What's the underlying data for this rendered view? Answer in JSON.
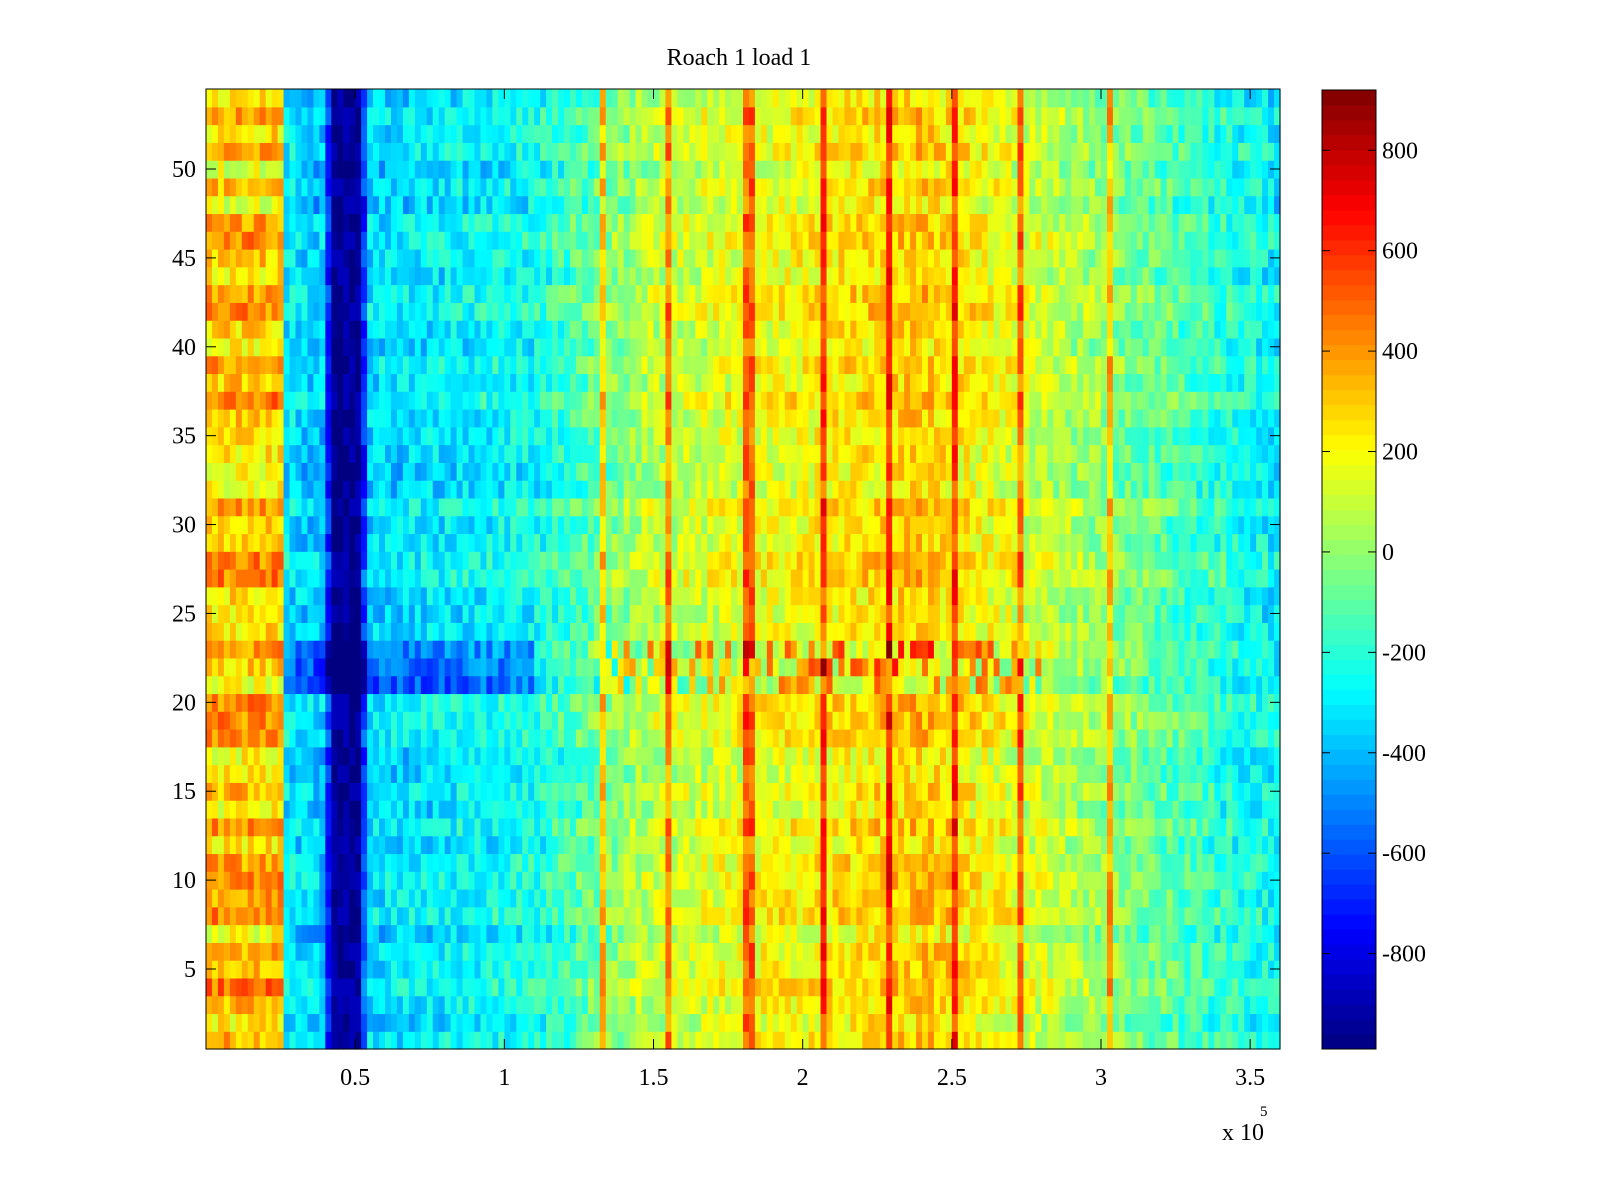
{
  "chart_data": {
    "type": "heatmap",
    "title": "Roach 1 load 1",
    "xlabel": "",
    "ylabel": "",
    "x_multiplier_label": {
      "base": "x 10",
      "exponent": "5"
    },
    "xlim": [
      0,
      3.6
    ],
    "ylim": [
      0.5,
      54.5
    ],
    "x_ticks": [
      0.5,
      1,
      1.5,
      2,
      2.5,
      3,
      3.5
    ],
    "x_tick_labels": [
      "0.5",
      "1",
      "1.5",
      "2",
      "2.5",
      "3",
      "3.5"
    ],
    "y_ticks": [
      5,
      10,
      15,
      20,
      25,
      30,
      35,
      40,
      45,
      50
    ],
    "y_tick_labels": [
      "5",
      "10",
      "15",
      "20",
      "25",
      "30",
      "35",
      "40",
      "45",
      "50"
    ],
    "n_rows": 54,
    "colormap": "jet",
    "colorbar": {
      "clim": [
        -990,
        920
      ],
      "ticks": [
        800,
        600,
        400,
        200,
        0,
        -200,
        -400,
        -600,
        -800
      ],
      "tick_labels": [
        "800",
        "600",
        "400",
        "200",
        "0",
        "-200",
        "-400",
        "-600",
        "-800"
      ]
    },
    "column_profile": [
      {
        "x": 0.0,
        "value": 300
      },
      {
        "x": 0.25,
        "value": 300
      },
      {
        "x": 0.26,
        "value": -300
      },
      {
        "x": 0.4,
        "value": -400
      },
      {
        "x": 0.42,
        "value": -950
      },
      {
        "x": 0.52,
        "value": -950
      },
      {
        "x": 0.54,
        "value": -350
      },
      {
        "x": 1.1,
        "value": -250
      },
      {
        "x": 1.5,
        "value": 80
      },
      {
        "x": 2.0,
        "value": 200
      },
      {
        "x": 2.4,
        "value": 300
      },
      {
        "x": 3.0,
        "value": 0
      },
      {
        "x": 3.6,
        "value": -300
      }
    ],
    "bright_vertical_lines_x": [
      1.33,
      1.55,
      1.82,
      2.07,
      2.29,
      2.51,
      2.73,
      3.03
    ]
  }
}
